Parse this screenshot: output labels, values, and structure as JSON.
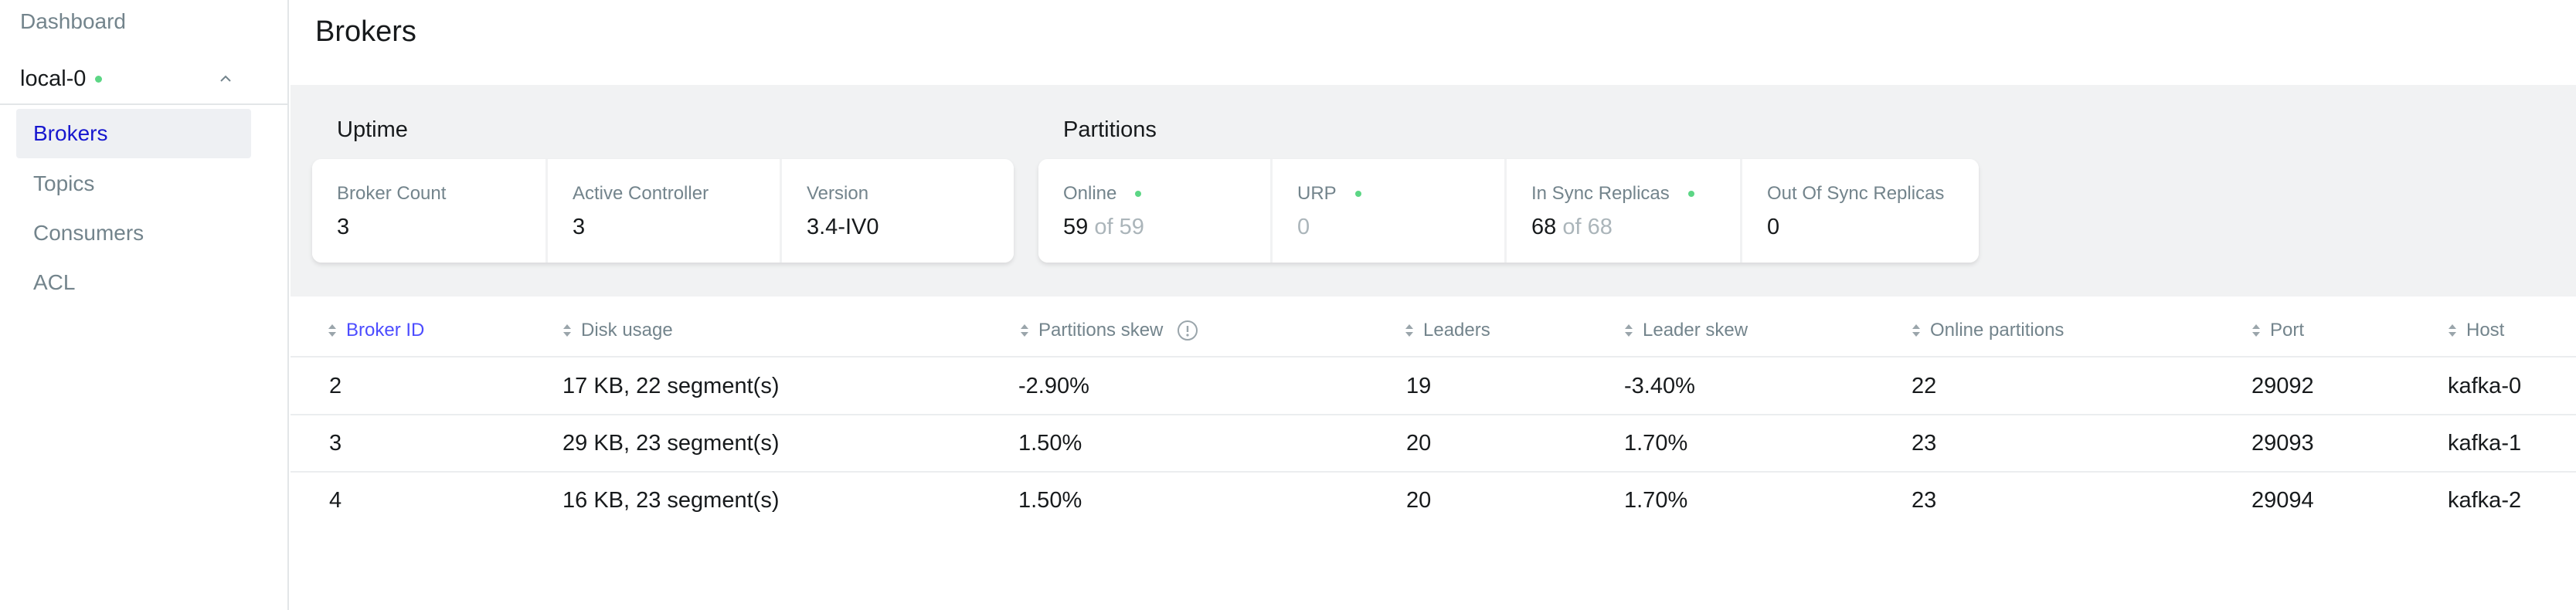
{
  "sidebar": {
    "dashboard": "Dashboard",
    "cluster_name": "local-0",
    "items": [
      {
        "label": "Brokers",
        "active": true
      },
      {
        "label": "Topics",
        "active": false
      },
      {
        "label": "Consumers",
        "active": false
      },
      {
        "label": "ACL",
        "active": false
      }
    ]
  },
  "page": {
    "title": "Brokers"
  },
  "uptime": {
    "title": "Uptime",
    "broker_count": {
      "label": "Broker Count",
      "value": "3"
    },
    "active_controller": {
      "label": "Active Controller",
      "value": "3"
    },
    "version": {
      "label": "Version",
      "value": "3.4-IV0"
    }
  },
  "partitions": {
    "title": "Partitions",
    "online": {
      "label": "Online",
      "value": "59",
      "of": "of 59"
    },
    "urp": {
      "label": "URP",
      "value": "0"
    },
    "in_sync": {
      "label": "In Sync Replicas",
      "value": "68",
      "of": "of 68"
    },
    "out_of_sync": {
      "label": "Out Of Sync Replicas",
      "value": "0"
    }
  },
  "table": {
    "headers": {
      "broker_id": "Broker ID",
      "disk_usage": "Disk usage",
      "partitions_skew": "Partitions skew",
      "leaders": "Leaders",
      "leader_skew": "Leader skew",
      "online_partitions": "Online partitions",
      "port": "Port",
      "host": "Host"
    },
    "rows": [
      {
        "broker_id": "2",
        "disk_usage": "17 KB, 22 segment(s)",
        "partitions_skew": "-2.90%",
        "leaders": "19",
        "leader_skew": "-3.40%",
        "online_partitions": "22",
        "port": "29092",
        "host": "kafka-0"
      },
      {
        "broker_id": "3",
        "disk_usage": "29 KB, 23 segment(s)",
        "partitions_skew": "1.50%",
        "leaders": "20",
        "leader_skew": "1.70%",
        "online_partitions": "23",
        "port": "29093",
        "host": "kafka-1"
      },
      {
        "broker_id": "4",
        "disk_usage": "16 KB, 23 segment(s)",
        "partitions_skew": "1.50%",
        "leaders": "20",
        "leader_skew": "1.70%",
        "online_partitions": "23",
        "port": "29094",
        "host": "kafka-2"
      }
    ]
  },
  "colors": {
    "accent": "#4c4cff",
    "active_nav": "#1717cf",
    "status_green": "#5cd685",
    "band_bg": "#f1f2f3"
  }
}
